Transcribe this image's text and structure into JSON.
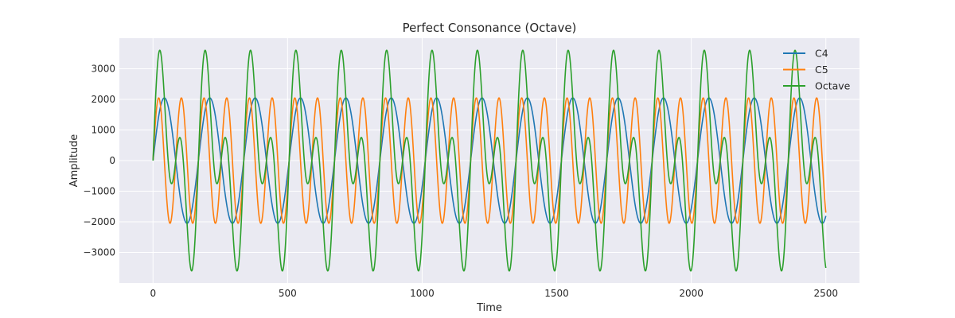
{
  "chart_data": {
    "type": "line",
    "title": "Perfect Consonance (Octave)",
    "xlabel": "Time",
    "ylabel": "Amplitude",
    "xlim": [
      -125,
      2625
    ],
    "ylim": [
      -4000,
      4000
    ],
    "x_ticks": [
      0,
      500,
      1000,
      1500,
      2000,
      2500
    ],
    "y_ticks": [
      -3000,
      -2000,
      -1000,
      0,
      1000,
      2000,
      3000
    ],
    "grid": true,
    "legend_position": "top-right",
    "x_range": [
      0,
      2500
    ],
    "series": [
      {
        "name": "C4",
        "color": "#1f77b4",
        "amplitude": 2048,
        "period_samples": 168.6,
        "waveform": "sine"
      },
      {
        "name": "C5",
        "color": "#ff7f0e",
        "amplitude": 2048,
        "period_samples": 84.3,
        "waveform": "sine"
      },
      {
        "name": "Octave",
        "color": "#2ca02c",
        "waveform": "sum",
        "components": [
          "C4",
          "C5"
        ]
      }
    ]
  }
}
